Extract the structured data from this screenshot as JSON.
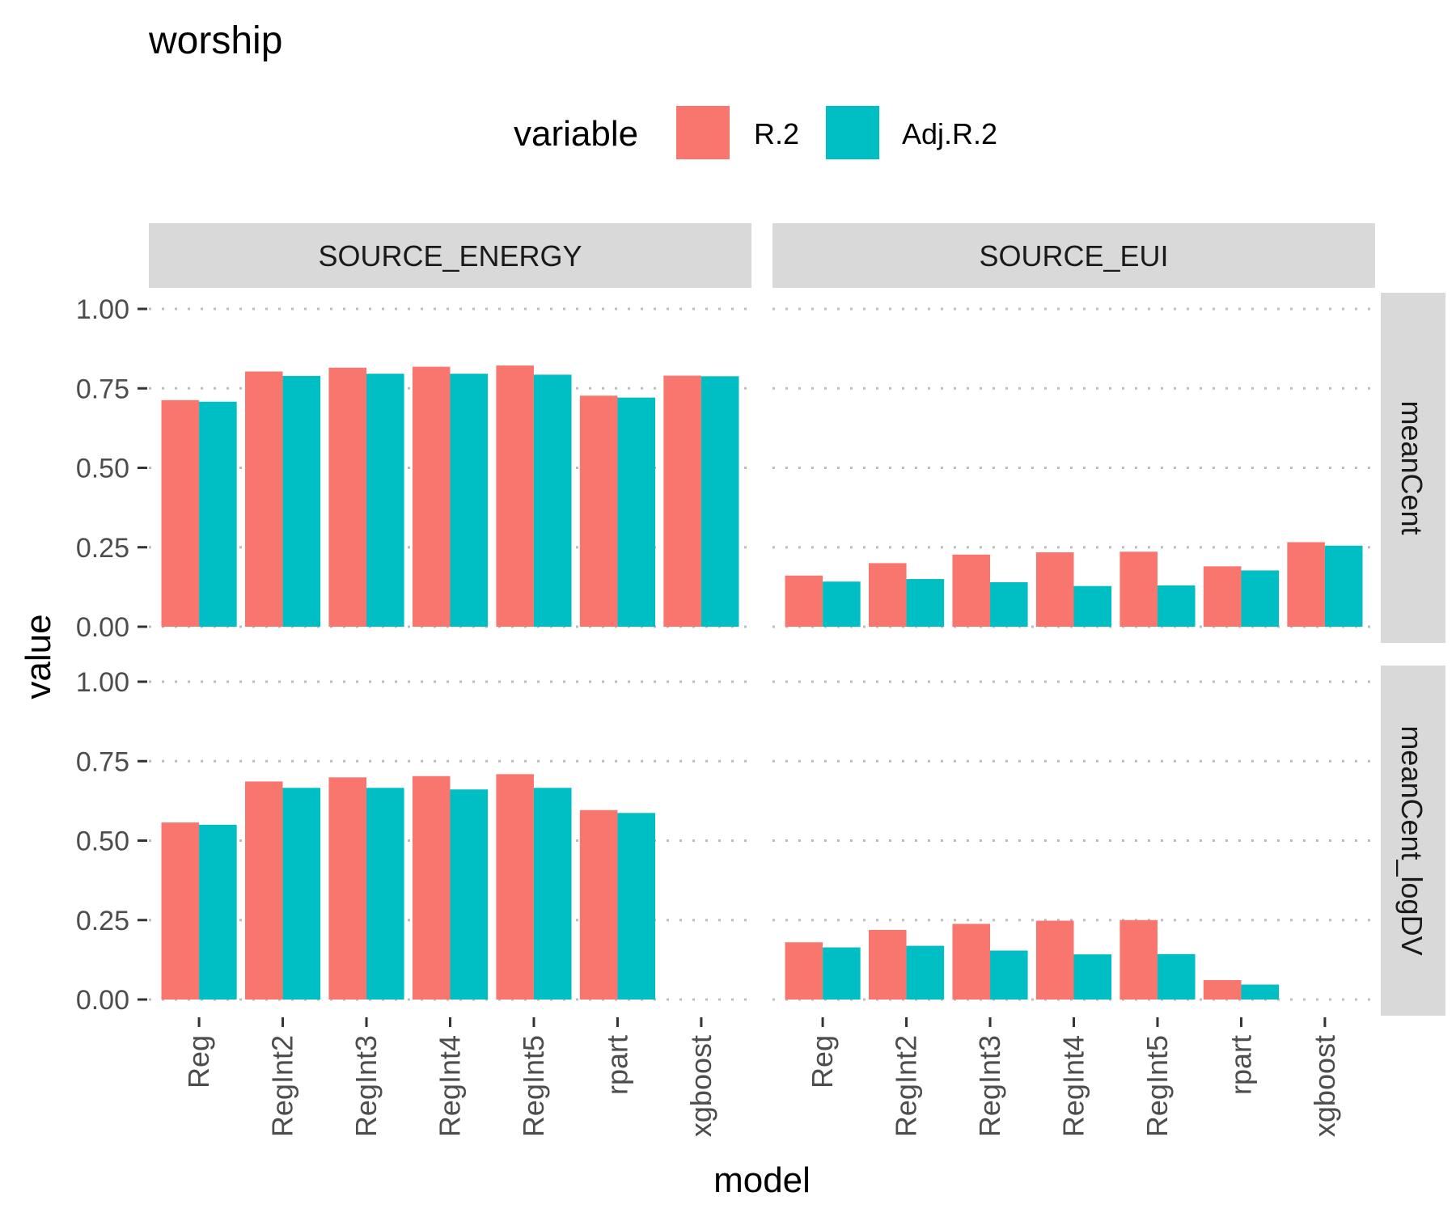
{
  "chart_data": {
    "type": "bar",
    "title": "worship",
    "xlabel": "model",
    "ylabel": "value",
    "ylim": [
      0,
      1
    ],
    "yticks": [
      "0.00",
      "0.25",
      "0.50",
      "0.75",
      "1.00"
    ],
    "grid": true,
    "legend": {
      "title": "variable",
      "position": "top",
      "entries": [
        {
          "name": "R.2",
          "color": "#F8766D"
        },
        {
          "name": "Adj.R.2",
          "color": "#00BFC4"
        }
      ]
    },
    "categories": [
      "Reg",
      "RegInt2",
      "RegInt3",
      "RegInt4",
      "RegInt5",
      "rpart",
      "xgboost"
    ],
    "column_facets": [
      "SOURCE_ENERGY",
      "SOURCE_EUI"
    ],
    "row_facets": [
      "meanCent",
      "meanCent_logDV"
    ],
    "panels": [
      {
        "column": "SOURCE_ENERGY",
        "row": "meanCent",
        "series": [
          {
            "name": "R.2",
            "values": [
              0.713,
              0.803,
              0.815,
              0.818,
              0.822,
              0.727,
              0.79
            ]
          },
          {
            "name": "Adj.R.2",
            "values": [
              0.708,
              0.789,
              0.796,
              0.796,
              0.793,
              0.721,
              0.788
            ]
          }
        ]
      },
      {
        "column": "SOURCE_EUI",
        "row": "meanCent",
        "series": [
          {
            "name": "R.2",
            "values": [
              0.161,
              0.2,
              0.227,
              0.234,
              0.236,
              0.19,
              0.266
            ]
          },
          {
            "name": "Adj.R.2",
            "values": [
              0.142,
              0.15,
              0.14,
              0.128,
              0.13,
              0.177,
              0.255
            ]
          }
        ]
      },
      {
        "column": "SOURCE_ENERGY",
        "row": "meanCent_logDV",
        "series": [
          {
            "name": "R.2",
            "values": [
              0.557,
              0.686,
              0.699,
              0.703,
              0.709,
              0.596,
              null
            ]
          },
          {
            "name": "Adj.R.2",
            "values": [
              0.55,
              0.666,
              0.666,
              0.661,
              0.666,
              0.587,
              null
            ]
          }
        ]
      },
      {
        "column": "SOURCE_EUI",
        "row": "meanCent_logDV",
        "series": [
          {
            "name": "R.2",
            "values": [
              0.18,
              0.219,
              0.238,
              0.248,
              0.25,
              0.061,
              null
            ]
          },
          {
            "name": "Adj.R.2",
            "values": [
              0.164,
              0.169,
              0.154,
              0.142,
              0.143,
              0.047,
              null
            ]
          }
        ]
      }
    ]
  }
}
